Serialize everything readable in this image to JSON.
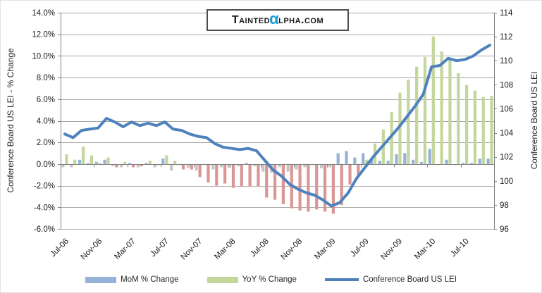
{
  "logo": {
    "part1": "Tainted",
    "alpha": "α",
    "part2": "lpha.com"
  },
  "axes": {
    "left_title": "Conference Board US LEI - % Change",
    "right_title": "Conference Board US LEI",
    "left_ticks": [
      "14.0%",
      "12.0%",
      "10.0%",
      "8.0%",
      "6.0%",
      "4.0%",
      "2.0%",
      "0.0%",
      "-2.0%",
      "-4.0%",
      "-6.0%"
    ],
    "left_tick_values": [
      14,
      12,
      10,
      8,
      6,
      4,
      2,
      0,
      -2,
      -4,
      -6
    ],
    "right_ticks": [
      "114",
      "112",
      "110",
      "108",
      "106",
      "104",
      "102",
      "100",
      "98",
      "96"
    ],
    "right_tick_values": [
      114,
      112,
      110,
      108,
      106,
      104,
      102,
      100,
      98,
      96
    ],
    "x_tick_labels": [
      "Jul-06",
      "Nov-06",
      "Mar-07",
      "Jul-07",
      "Nov-07",
      "Mar-08",
      "Jul-08",
      "Nov-08",
      "Mar-09",
      "Jul-09",
      "Nov-09",
      "Mar-10",
      "Jul-10"
    ],
    "x_tick_month_indexes": [
      0,
      4,
      8,
      12,
      16,
      20,
      24,
      28,
      32,
      36,
      40,
      44,
      48
    ]
  },
  "legend": [
    {
      "label": "MoM % Change",
      "type": "bar",
      "color": "#95b3d7"
    },
    {
      "label": "YoY % Change",
      "type": "bar",
      "color": "#c3d69b"
    },
    {
      "label": "Conference Board US LEI",
      "type": "line",
      "color": "#4f81bd"
    }
  ],
  "colors": {
    "mom_pos": "#95b3d7",
    "mom_neg": "#c6c6c6",
    "yoy_pos": "#c3d69b",
    "yoy_neg": "#d99694",
    "line": "#4f81bd",
    "grid": "#a6a6a6",
    "axis": "#808080",
    "tick_text": "#1a1a1a",
    "alpha_blue": "#1e9ad6"
  },
  "chart_data": {
    "type": "combo",
    "categories": [
      "Jul-06",
      "Aug-06",
      "Sep-06",
      "Oct-06",
      "Nov-06",
      "Dec-06",
      "Jan-07",
      "Feb-07",
      "Mar-07",
      "Apr-07",
      "May-07",
      "Jun-07",
      "Jul-07",
      "Aug-07",
      "Sep-07",
      "Oct-07",
      "Nov-07",
      "Dec-07",
      "Jan-08",
      "Feb-08",
      "Mar-08",
      "Apr-08",
      "May-08",
      "Jun-08",
      "Jul-08",
      "Aug-08",
      "Sep-08",
      "Oct-08",
      "Nov-08",
      "Dec-08",
      "Jan-09",
      "Feb-09",
      "Mar-09",
      "Apr-09",
      "May-09",
      "Jun-09",
      "Jul-09",
      "Aug-09",
      "Sep-09",
      "Oct-09",
      "Nov-09",
      "Dec-09",
      "Jan-10",
      "Feb-10",
      "Mar-10",
      "Apr-10",
      "May-10",
      "Jun-10",
      "Jul-10",
      "Aug-10",
      "Sep-10",
      "Oct-10"
    ],
    "series": [
      {
        "name": "MoM % Change",
        "type": "bar",
        "axis": "left",
        "values": [
          -0.3,
          -0.3,
          0.4,
          0.1,
          0.2,
          0.4,
          -0.2,
          -0.3,
          0.1,
          -0.3,
          0.1,
          -0.3,
          0.5,
          -0.6,
          -0.1,
          -0.35,
          -0.6,
          -0.1,
          -0.5,
          -0.3,
          -0.35,
          -0.2,
          0.1,
          -0.2,
          -0.7,
          -0.8,
          -0.3,
          -0.7,
          -0.5,
          -0.3,
          -0.1,
          -0.4,
          -0.3,
          1.0,
          1.2,
          0.6,
          1.0,
          0.4,
          0.3,
          0.3,
          0.9,
          1.0,
          0.4,
          0.2,
          1.4,
          -0.1,
          0.4,
          -0.1,
          0.1,
          0.1,
          0.5,
          0.5
        ]
      },
      {
        "name": "YoY % Change",
        "type": "bar",
        "axis": "left",
        "values": [
          0.9,
          0.4,
          1.6,
          0.8,
          0.1,
          0.6,
          -0.3,
          0.2,
          -0.3,
          -0.2,
          0.3,
          -0.1,
          0.8,
          0.3,
          -0.5,
          -0.5,
          -1.2,
          -1.7,
          -2.0,
          -1.8,
          -2.2,
          -2.1,
          -2.1,
          -2.1,
          -3.1,
          -3.3,
          -3.7,
          -4.1,
          -4.3,
          -4.4,
          -4.2,
          -4.4,
          -4.6,
          -3.8,
          -1.9,
          -1.0,
          0.4,
          1.9,
          3.2,
          4.8,
          6.6,
          7.8,
          9.0,
          9.9,
          11.8,
          10.4,
          9.6,
          8.4,
          7.3,
          6.8,
          6.2,
          6.3
        ]
      },
      {
        "name": "Conference Board US LEI",
        "type": "line",
        "axis": "right",
        "values": [
          103.9,
          103.6,
          104.2,
          104.3,
          104.4,
          105.2,
          104.9,
          104.5,
          104.9,
          104.6,
          104.8,
          104.6,
          104.9,
          104.3,
          104.2,
          103.9,
          103.7,
          103.6,
          103.1,
          102.8,
          102.7,
          102.6,
          102.7,
          102.5,
          101.7,
          100.9,
          100.4,
          99.7,
          99.3,
          99.0,
          98.8,
          98.4,
          97.9,
          98.2,
          99.0,
          100.2,
          101.1,
          102.0,
          102.8,
          103.6,
          104.4,
          105.3,
          106.2,
          107.2,
          109.5,
          109.6,
          110.2,
          110.0,
          110.1,
          110.4,
          110.9,
          111.3
        ]
      }
    ],
    "left_axis": {
      "min": -6,
      "max": 14,
      "step": 2,
      "format": "percent",
      "title": "Conference Board US LEI - % Change"
    },
    "right_axis": {
      "min": 96,
      "max": 114,
      "step": 2,
      "title": "Conference Board US LEI"
    },
    "grid": true,
    "legend_position": "bottom"
  }
}
